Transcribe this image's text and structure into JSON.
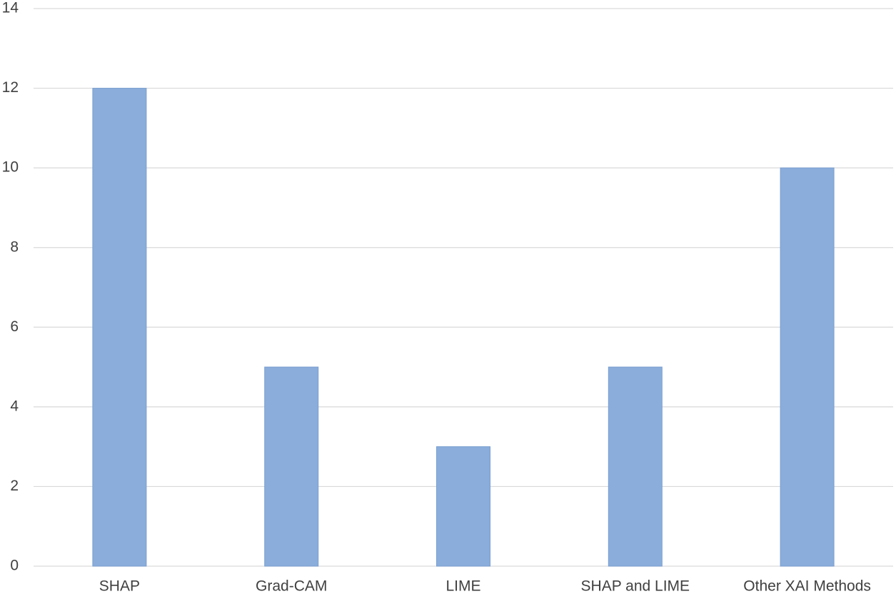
{
  "chart_data": {
    "type": "bar",
    "categories": [
      "SHAP",
      "Grad-CAM",
      "LIME",
      "SHAP and LIME",
      "Other XAI Methods"
    ],
    "values": [
      12,
      5,
      3,
      5,
      10
    ],
    "color": "#8aaddb",
    "ylim": [
      0,
      14
    ],
    "yticks": [
      0,
      2,
      4,
      6,
      8,
      10,
      12,
      14
    ],
    "grid": true
  }
}
